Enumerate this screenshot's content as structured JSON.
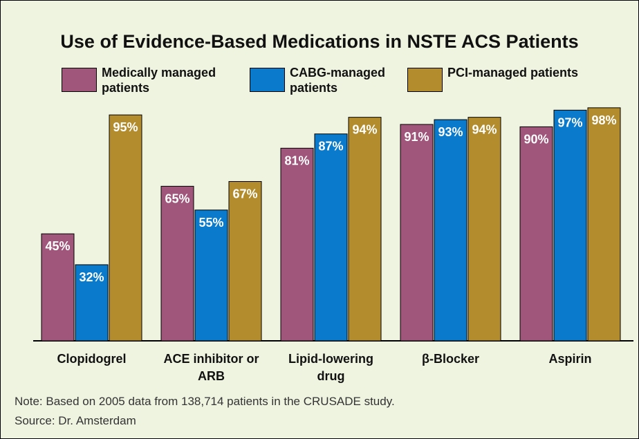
{
  "chart_data": {
    "type": "bar",
    "title": "Use of Evidence-Based Medications in NSTE ACS Patients",
    "categories": [
      "Clopidogrel",
      "ACE inhibitor or ARB",
      "Lipid-lowering drug",
      "β-Blocker",
      "Aspirin"
    ],
    "series": [
      {
        "name": "Medically managed patients",
        "color": "#a0567a",
        "values": [
          45,
          65,
          81,
          91,
          90
        ],
        "value_labels": [
          "45%",
          "65%",
          "81%",
          "91%",
          "90%"
        ]
      },
      {
        "name": "CABG-managed patients",
        "color": "#0a7acc",
        "values": [
          32,
          55,
          87,
          93,
          97
        ],
        "value_labels": [
          "32%",
          "55%",
          "87%",
          "93%",
          "97%"
        ]
      },
      {
        "name": "PCI-managed patients",
        "color": "#b38c2e",
        "values": [
          95,
          67,
          94,
          94,
          98
        ],
        "value_labels": [
          "95%",
          "67%",
          "94%",
          "94%",
          "98%"
        ]
      }
    ],
    "note": "Note: Based on 2005 data from 138,714 patients in the CRUSADE study.",
    "source": "Source: Dr. Amsterdam"
  }
}
